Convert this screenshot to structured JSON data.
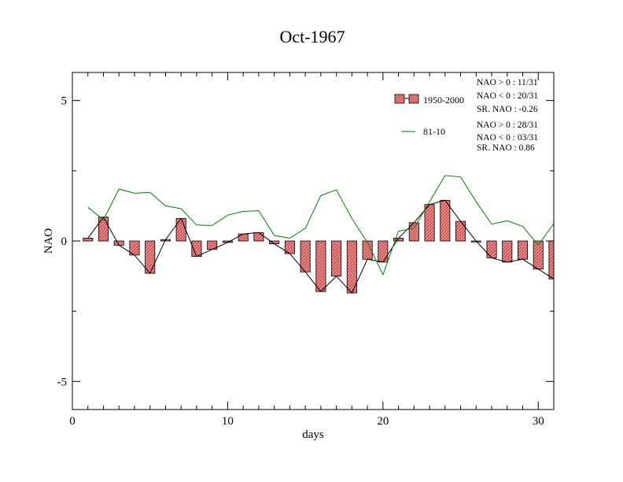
{
  "chart_data": {
    "type": "bar",
    "title": "Oct-1967",
    "xlabel": "days",
    "ylabel": "NAO",
    "xlim": [
      0,
      31
    ],
    "ylim": [
      -6,
      6
    ],
    "x_ticks": [
      0,
      10,
      20,
      30
    ],
    "y_ticks": [
      -5,
      0,
      5
    ],
    "x_tick_labels": [
      "0",
      "10",
      "20",
      "30"
    ],
    "y_tick_labels": [
      "-5",
      "0",
      "5"
    ],
    "grid": false,
    "legend_position": "top-right",
    "days": [
      1,
      2,
      3,
      4,
      5,
      6,
      7,
      8,
      9,
      10,
      11,
      12,
      13,
      14,
      15,
      16,
      17,
      18,
      19,
      20,
      21,
      22,
      23,
      24,
      25,
      26,
      27,
      28,
      29,
      30,
      31
    ],
    "series": [
      {
        "name": "1950-2000",
        "kind": "bar",
        "color": "#f08080",
        "values": [
          0.1,
          0.85,
          -0.15,
          -0.5,
          -1.15,
          0.05,
          0.8,
          -0.55,
          -0.3,
          -0.05,
          0.25,
          0.3,
          -0.1,
          -0.45,
          -1.1,
          -1.8,
          -1.25,
          -1.85,
          -0.65,
          -0.75,
          0.1,
          0.65,
          1.3,
          1.45,
          0.7,
          0.0,
          -0.6,
          -0.75,
          -0.65,
          -1.0,
          -1.35
        ]
      },
      {
        "name": "81-10",
        "kind": "line",
        "color": "#008000",
        "values": [
          1.2,
          0.75,
          1.85,
          1.7,
          1.73,
          1.25,
          1.15,
          0.57,
          0.55,
          0.92,
          1.05,
          1.08,
          0.2,
          0.1,
          0.45,
          1.62,
          1.82,
          0.8,
          -0.05,
          -1.2,
          0.35,
          0.45,
          1.4,
          2.33,
          2.28,
          1.4,
          0.6,
          0.72,
          0.52,
          -0.15,
          0.62
        ]
      }
    ],
    "stats": [
      {
        "lines": [
          "NAO > 0 :  11/31",
          "NAO < 0 :  20/31",
          "SR. NAO :  -0.26"
        ]
      },
      {
        "lines": [
          "NAO > 0 :  28/31",
          "NAO < 0 :  03/31",
          "SR. NAO :   0.86"
        ]
      }
    ]
  }
}
